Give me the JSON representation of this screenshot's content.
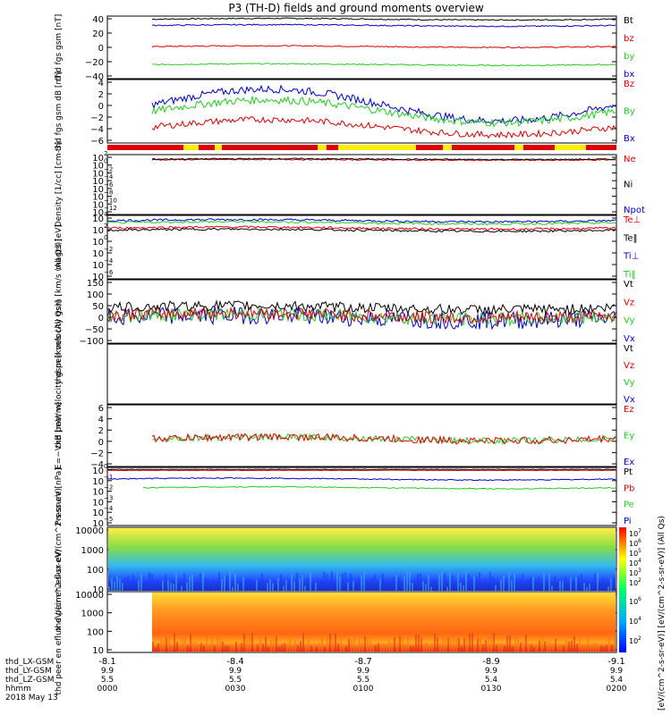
{
  "title": "P3 (TH-D) fields and ground moments overview",
  "colors": {
    "black": "#000000",
    "red": "#dd0000",
    "green": "#22cc22",
    "blue": "#0000cc",
    "yellow": "#ffee00"
  },
  "x_ticks": {
    "lx": [
      "-8.1",
      "-8.4",
      "-8.7",
      "-8.9",
      "-9.1"
    ],
    "ly": [
      "9.9",
      "9.9",
      "9.9",
      "9.9",
      "9.9"
    ],
    "lz": [
      "5.5",
      "5.5",
      "5.5",
      "5.4",
      "5.4"
    ],
    "hhmm": [
      "0000",
      "0030",
      "0100",
      "0130",
      "0200"
    ]
  },
  "x_row_labels": [
    "thd_LX-GSM",
    "thd_LY-GSM",
    "thd_LZ-GSM",
    "hhmm",
    "2018 May 13"
  ],
  "colorbar": {
    "top_ticks": [
      "10",
      "10",
      "10",
      "10",
      "10",
      "10"
    ],
    "top_exps": [
      "7",
      "6",
      "5",
      "4",
      "3",
      "2"
    ],
    "bot_ticks": [
      "10",
      "10",
      "10"
    ],
    "bot_exps": [
      "6",
      "4",
      "2"
    ],
    "label": "[eV/(cm^2-s-sr-eV)] [eV/(cm^2-s-sr-eV)] (All Qs)"
  },
  "chart_data": [
    {
      "type": "line",
      "ylabel": "thd fgs gsm [nT]",
      "ylim": [
        -40,
        40
      ],
      "yticks": [
        "40",
        "20",
        "0",
        "−20",
        "−40"
      ],
      "series": [
        {
          "name": "Bt",
          "color": "black",
          "level": 36
        },
        {
          "name": "bz",
          "color": "red",
          "level": 1
        },
        {
          "name": "by",
          "color": "green",
          "level": -22
        },
        {
          "name": "bx",
          "color": "blue",
          "level": 28
        }
      ],
      "legend": [
        "Bt",
        "bz",
        "by",
        "bx"
      ]
    },
    {
      "type": "line",
      "ylabel": "thd fgs gsm dB [nT]",
      "ylim": [
        -6,
        4
      ],
      "yticks": [
        "4",
        "2",
        "0",
        "−2",
        "−4",
        "−6"
      ],
      "series": [
        {
          "name": "Bz",
          "color": "red"
        },
        {
          "name": "By",
          "color": "green"
        },
        {
          "name": "Bx",
          "color": "blue"
        }
      ],
      "legend": [
        "Bz",
        "By",
        "Bx"
      ]
    },
    {
      "type": "line",
      "ylabel": "Density [1/cc] [cm-3]",
      "ylim": [
        -14,
        2
      ],
      "yticks": [
        "10",
        "10",
        "10",
        "10",
        "10",
        "10",
        "10",
        "10"
      ],
      "yexps": [
        "2",
        "0",
        "−2",
        "−4",
        "−6",
        "−8",
        "−10",
        "−12"
      ],
      "legend": [
        "Ne",
        "Ni",
        "Npot"
      ]
    },
    {
      "type": "line",
      "ylabel": "magt3 [eV]",
      "ylim": [
        -2,
        4
      ],
      "yticks": [
        "10",
        "10",
        "10",
        "10",
        "10",
        "10"
      ],
      "yexps": [
        "4",
        "2",
        "0",
        "−2",
        "−4",
        "−6"
      ],
      "legend": [
        "Te⊥",
        "Te‖",
        "Ti⊥",
        "Ti‖"
      ]
    },
    {
      "type": "line",
      "ylabel": "thd peir velocity gsm [km/s (All Qs)]",
      "ylim": [
        -100,
        150
      ],
      "yticks": [
        "150",
        "100",
        "50",
        "0",
        "−50",
        "−100"
      ],
      "legend": [
        "Vt",
        "Vz",
        "Vy",
        "Vx"
      ]
    },
    {
      "type": "line",
      "ylabel": "thd peer velocity gsm [km/s (All Qs)]",
      "legend": [
        "Vt",
        "Vz",
        "Vy",
        "Vx"
      ],
      "yticks": []
    },
    {
      "type": "line",
      "ylabel": "E=−VxB [mV/m]",
      "ylim": [
        -4,
        6
      ],
      "yticks": [
        "6",
        "4",
        "2",
        "0",
        "−2",
        "−4"
      ],
      "legend": [
        "Ez",
        "Ey",
        "Ex"
      ]
    },
    {
      "type": "line",
      "ylabel": "Pressure [nPa]",
      "ylim": [
        -6,
        0
      ],
      "yticks": [
        "10",
        "10",
        "10",
        "10",
        "10",
        "10"
      ],
      "yexps": [
        "0",
        "−1",
        "−2",
        "−3",
        "−4",
        "−5"
      ],
      "legend": [
        "Pt",
        "Pb",
        "Pe",
        "Pi"
      ]
    },
    {
      "type": "heatmap",
      "ylabel": "thd peir en eflux eV/(cm^2-s-sr-eV)",
      "yticks": [
        "10000",
        "1000",
        "100",
        "10"
      ]
    },
    {
      "type": "heatmap",
      "ylabel": "thd peer en eflux eV/(cm^2-s-sr-eV)",
      "yticks": [
        "10000",
        "1000",
        "100",
        "10"
      ]
    }
  ]
}
